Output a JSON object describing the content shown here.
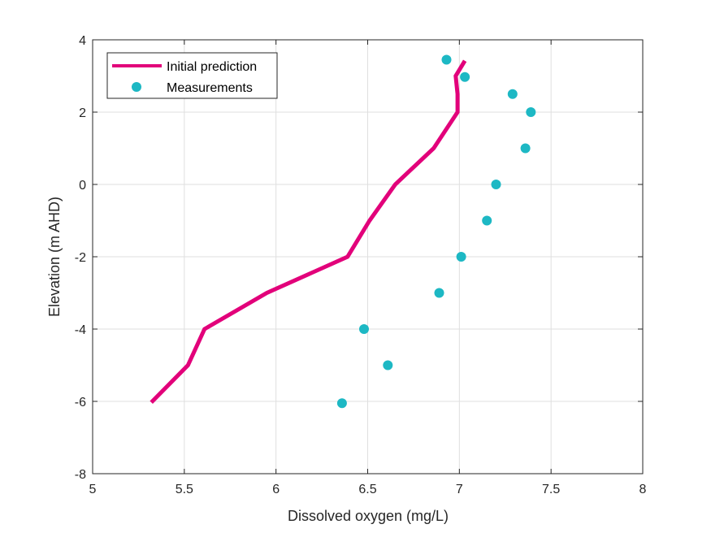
{
  "chart_data": {
    "type": "line",
    "xlabel": "Dissolved oxygen (mg/L)",
    "ylabel": "Elevation (m AHD)",
    "xlim": [
      5,
      8
    ],
    "ylim": [
      -8,
      4
    ],
    "xticks": [
      5,
      5.5,
      6,
      6.5,
      7,
      7.5,
      8
    ],
    "yticks": [
      -8,
      -6,
      -4,
      -2,
      0,
      2,
      4
    ],
    "xtick_labels": [
      "5",
      "5.5",
      "6",
      "6.5",
      "7",
      "7.5",
      "8"
    ],
    "ytick_labels": [
      "-8",
      "-6",
      "-4",
      "-2",
      "0",
      "2",
      "4"
    ],
    "grid": true,
    "legend_position": "top-left",
    "series": [
      {
        "name": "Initial prediction",
        "kind": "line",
        "color": "#E2007A",
        "x": [
          5.32,
          5.52,
          5.61,
          5.95,
          6.39,
          6.51,
          6.65,
          6.86,
          6.99,
          6.99,
          6.98,
          7.03
        ],
        "y": [
          -6.03,
          -5.0,
          -4.0,
          -3.0,
          -2.0,
          -1.0,
          0.0,
          1.0,
          2.0,
          2.5,
          3.0,
          3.42
        ]
      },
      {
        "name": "Measurements",
        "kind": "scatter",
        "color": "#1DB8C4",
        "x": [
          6.93,
          7.03,
          7.29,
          7.39,
          7.36,
          7.2,
          7.15,
          7.01,
          6.89,
          6.48,
          6.61,
          6.36
        ],
        "y": [
          3.45,
          2.97,
          2.5,
          2.0,
          1.0,
          0.0,
          -1.0,
          -2.0,
          -3.0,
          -4.0,
          -5.0,
          -6.05
        ]
      }
    ]
  }
}
